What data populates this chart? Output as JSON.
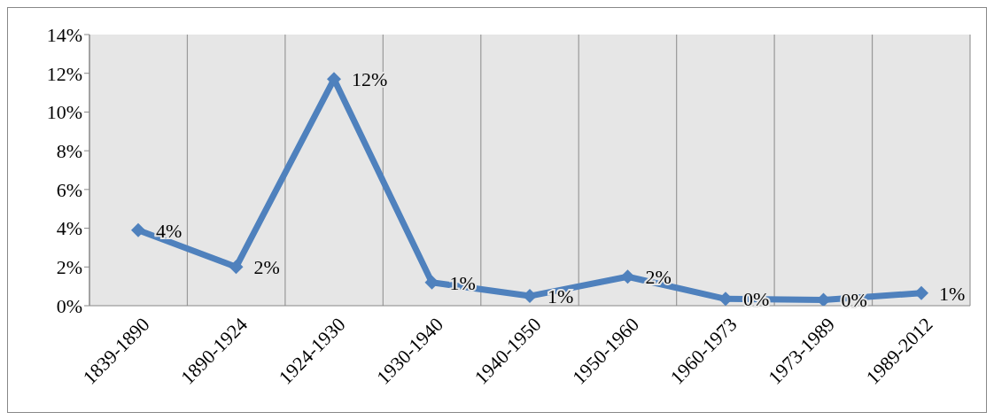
{
  "chart_data": {
    "type": "line",
    "categories": [
      "1839-1890",
      "1890-1924",
      "1924-1930",
      "1930-1940",
      "1940-1950",
      "1950-1960",
      "1960-1973",
      "1973-1989",
      "1989-2012"
    ],
    "series": [
      {
        "color": "#4f81bd",
        "values": [
          3.9,
          2.0,
          11.7,
          1.2,
          0.5,
          1.5,
          0.35,
          0.3,
          0.65
        ],
        "value_labels": [
          "4%",
          "2%",
          "12%",
          "1%",
          "1%",
          "2%",
          "0%",
          "0%",
          "1%"
        ]
      }
    ],
    "ylim": [
      0,
      14
    ],
    "yticks": [
      {
        "value": 0,
        "label": "0%"
      },
      {
        "value": 2,
        "label": "2%"
      },
      {
        "value": 4,
        "label": "4%"
      },
      {
        "value": 6,
        "label": "6%"
      },
      {
        "value": 8,
        "label": "8%"
      },
      {
        "value": 10,
        "label": "10%"
      },
      {
        "value": 12,
        "label": "12%"
      },
      {
        "value": 14,
        "label": "14%"
      }
    ],
    "grid": "x",
    "marker": "diamond",
    "line_style": "solid",
    "legend": false
  }
}
